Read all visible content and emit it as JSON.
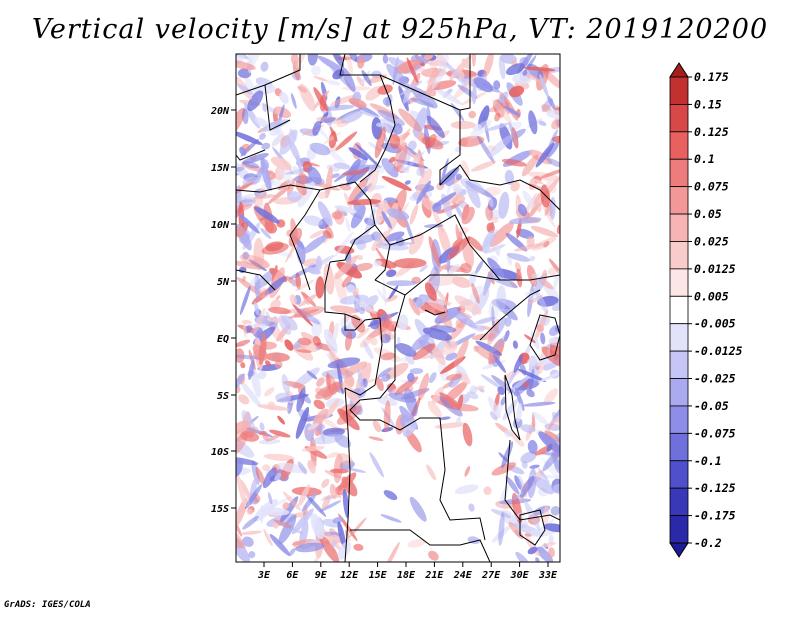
{
  "title": "Vertical velocity [m/s] at 925hPa, VT: 2019120200",
  "credit": "GrADS: IGES/COLA",
  "map": {
    "lat_ticks": [
      "20N",
      "15N",
      "10N",
      "5N",
      "EQ",
      "5S",
      "10S",
      "15S"
    ],
    "lon_ticks": [
      "3E",
      "6E",
      "9E",
      "12E",
      "15E",
      "18E",
      "21E",
      "24E",
      "27E",
      "30E",
      "33E"
    ]
  },
  "colorbar": {
    "labels": [
      "0.175",
      "0.15",
      "0.125",
      "0.1",
      "0.075",
      "0.05",
      "0.025",
      "0.0125",
      "0.005",
      "-0.005",
      "-0.0125",
      "-0.025",
      "-0.05",
      "-0.075",
      "-0.1",
      "-0.125",
      "-0.175",
      "-0.2"
    ],
    "colors": [
      "#a51f1f",
      "#c33030",
      "#d84848",
      "#e86060",
      "#ee7c7c",
      "#f29898",
      "#f6b4b4",
      "#f9cccc",
      "#fce6e6",
      "#ffffff",
      "#e2e2fb",
      "#c6c6f6",
      "#aaaaf0",
      "#8e8ee8",
      "#7070dc",
      "#5050cc",
      "#3838b8",
      "#2a2aa8",
      "#1c1c96"
    ]
  }
}
